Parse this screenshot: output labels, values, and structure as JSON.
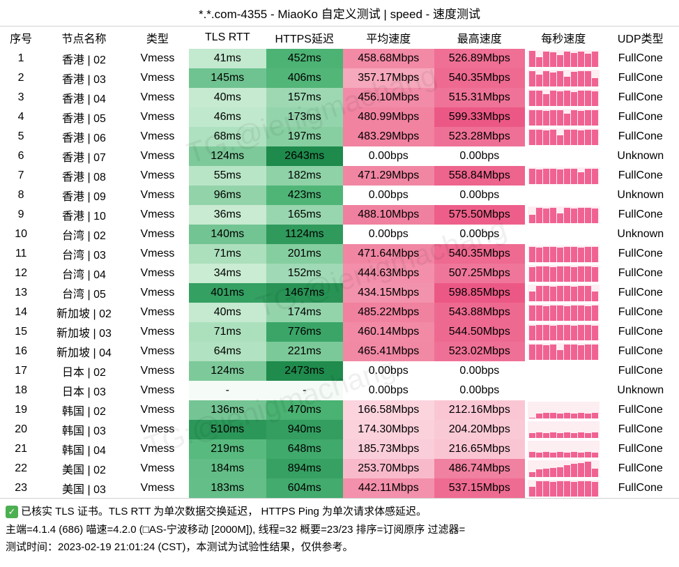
{
  "title": "*.*.com-4355 - MiaoKo 自定义测试 | speed - 速度测试",
  "columns": [
    "序号",
    "节点名称",
    "类型",
    "TLS RTT",
    "HTTPS延迟",
    "平均速度",
    "最高速度",
    "每秒速度",
    "UDP类型"
  ],
  "type_label": "Vmess",
  "green_palette": {
    "_comment": "tls/https cell backgrounds keyed by relative latency",
    "na": "#f5fbf7"
  },
  "pink_palette": {
    "text": "#000000"
  },
  "spark_bar_color": "#f06292",
  "spark_bg_color": "#fdeef2",
  "rows": [
    {
      "seq": 1,
      "node": "香港 | 02",
      "tls": "41ms",
      "tls_bg": "#c3e9cf",
      "https": "452ms",
      "https_bg": "#4cb374",
      "avg": "458.68Mbps",
      "avg_bg": "#f28aa6",
      "max": "526.89Mbps",
      "max_bg": "#ef6f95",
      "spark": [
        0.95,
        0.6,
        0.92,
        0.88,
        0.7,
        0.9,
        0.85,
        0.9,
        0.8,
        0.92
      ],
      "udp": "FullCone"
    },
    {
      "seq": 2,
      "node": "香港 | 03",
      "tls": "145ms",
      "tls_bg": "#6fc390",
      "https": "406ms",
      "https_bg": "#52b679",
      "avg": "357.17Mbps",
      "avg_bg": "#f6a8bc",
      "max": "540.35Mbps",
      "max_bg": "#ee6a91",
      "spark": [
        0.9,
        0.7,
        0.92,
        0.85,
        0.9,
        0.6,
        0.88,
        0.9,
        0.92,
        0.5
      ],
      "udp": "FullCone"
    },
    {
      "seq": 3,
      "node": "香港 | 04",
      "tls": "40ms",
      "tls_bg": "#c5eacf",
      "https": "157ms",
      "https_bg": "#9dd8b3",
      "avg": "456.10Mbps",
      "avg_bg": "#f28ba7",
      "max": "515.31Mbps",
      "max_bg": "#ef7398",
      "spark": [
        0.92,
        0.9,
        0.7,
        0.9,
        0.88,
        0.9,
        0.85,
        0.9,
        0.92,
        0.88
      ],
      "udp": "FullCone"
    },
    {
      "seq": 4,
      "node": "香港 | 05",
      "tls": "46ms",
      "tls_bg": "#c0e8cc",
      "https": "173ms",
      "https_bg": "#94d4ac",
      "avg": "480.99Mbps",
      "avg_bg": "#f183a1",
      "max": "599.33Mbps",
      "max_bg": "#ec5885",
      "spark": [
        0.92,
        0.9,
        0.88,
        0.9,
        0.92,
        0.7,
        0.9,
        0.88,
        0.9,
        0.92
      ],
      "udp": "FullCone"
    },
    {
      "seq": 5,
      "node": "香港 | 06",
      "tls": "68ms",
      "tls_bg": "#aee1bf",
      "https": "197ms",
      "https_bg": "#87cfa1",
      "avg": "483.29Mbps",
      "avg_bg": "#f182a0",
      "max": "523.28Mbps",
      "max_bg": "#ef7096",
      "spark": [
        0.9,
        0.92,
        0.88,
        0.92,
        0.6,
        0.9,
        0.92,
        0.88,
        0.9,
        0.92
      ],
      "udp": "FullCone"
    },
    {
      "seq": 6,
      "node": "香港 | 07",
      "tls": "124ms",
      "tls_bg": "#7dc99a",
      "https": "2643ms",
      "https_bg": "#1e8a4c",
      "avg": "0.00bps",
      "avg_bg": "#ffffff",
      "max": "0.00bps",
      "max_bg": "#ffffff",
      "spark": null,
      "udp": "Unknown"
    },
    {
      "seq": 7,
      "node": "香港 | 08",
      "tls": "55ms",
      "tls_bg": "#b9e5c7",
      "https": "182ms",
      "https_bg": "#8fd2a7",
      "avg": "471.29Mbps",
      "avg_bg": "#f186a3",
      "max": "558.84Mbps",
      "max_bg": "#ed648d",
      "spark": [
        0.9,
        0.88,
        0.92,
        0.9,
        0.88,
        0.92,
        0.9,
        0.7,
        0.9,
        0.92
      ],
      "udp": "FullCone"
    },
    {
      "seq": 8,
      "node": "香港 | 09",
      "tls": "96ms",
      "tls_bg": "#93d3aa",
      "https": "423ms",
      "https_bg": "#4fb577",
      "avg": "0.00bps",
      "avg_bg": "#ffffff",
      "max": "0.00bps",
      "max_bg": "#ffffff",
      "spark": null,
      "udp": "Unknown"
    },
    {
      "seq": 9,
      "node": "香港 | 10",
      "tls": "36ms",
      "tls_bg": "#c8ebd1",
      "https": "165ms",
      "https_bg": "#98d6af",
      "avg": "488.10Mbps",
      "avg_bg": "#f0809f",
      "max": "575.50Mbps",
      "max_bg": "#ed5f8a",
      "spark": [
        0.5,
        0.9,
        0.88,
        0.92,
        0.6,
        0.9,
        0.88,
        0.92,
        0.9,
        0.88
      ],
      "udp": "FullCone"
    },
    {
      "seq": 10,
      "node": "台湾 | 02",
      "tls": "140ms",
      "tls_bg": "#72c492",
      "https": "1124ms",
      "https_bg": "#2f9a5c",
      "avg": "0.00bps",
      "avg_bg": "#ffffff",
      "max": "0.00bps",
      "max_bg": "#ffffff",
      "spark": null,
      "udp": "Unknown"
    },
    {
      "seq": 11,
      "node": "台湾 | 03",
      "tls": "71ms",
      "tls_bg": "#ace0bd",
      "https": "201ms",
      "https_bg": "#85cea0",
      "avg": "471.64Mbps",
      "avg_bg": "#f186a3",
      "max": "540.35Mbps",
      "max_bg": "#ee6a91",
      "spark": [
        0.92,
        0.88,
        0.9,
        0.92,
        0.88,
        0.9,
        0.92,
        0.88,
        0.9,
        0.92
      ],
      "udp": "FullCone"
    },
    {
      "seq": 12,
      "node": "台湾 | 04",
      "tls": "34ms",
      "tls_bg": "#caecd2",
      "https": "152ms",
      "https_bg": "#9fd9b5",
      "avg": "444.63Mbps",
      "avg_bg": "#f38faa",
      "max": "507.25Mbps",
      "max_bg": "#ef769a",
      "spark": [
        0.88,
        0.92,
        0.9,
        0.88,
        0.92,
        0.9,
        0.88,
        0.92,
        0.9,
        0.88
      ],
      "udp": "FullCone"
    },
    {
      "seq": 13,
      "node": "台湾 | 05",
      "tls": "401ms",
      "tls_bg": "#34a062",
      "https": "1467ms",
      "https_bg": "#289355",
      "avg": "434.15Mbps",
      "avg_bg": "#f392ac",
      "max": "598.85Mbps",
      "max_bg": "#ec5885",
      "spark": [
        0.6,
        0.9,
        0.92,
        0.88,
        0.9,
        0.92,
        0.88,
        0.9,
        0.92,
        0.6
      ],
      "udp": "FullCone"
    },
    {
      "seq": 14,
      "node": "新加坡 | 02",
      "tls": "40ms",
      "tls_bg": "#c5eacf",
      "https": "174ms",
      "https_bg": "#93d4ab",
      "avg": "485.22Mbps",
      "avg_bg": "#f0819f",
      "max": "543.88Mbps",
      "max_bg": "#ee6990",
      "spark": [
        0.9,
        0.92,
        0.88,
        0.9,
        0.92,
        0.88,
        0.9,
        0.92,
        0.88,
        0.9
      ],
      "udp": "FullCone"
    },
    {
      "seq": 15,
      "node": "新加坡 | 03",
      "tls": "71ms",
      "tls_bg": "#ace0bd",
      "https": "776ms",
      "https_bg": "#3aa567",
      "avg": "460.14Mbps",
      "avg_bg": "#f28aa6",
      "max": "544.50Mbps",
      "max_bg": "#ee6990",
      "spark": [
        0.88,
        0.9,
        0.92,
        0.88,
        0.9,
        0.92,
        0.88,
        0.9,
        0.92,
        0.88
      ],
      "udp": "FullCone"
    },
    {
      "seq": 16,
      "node": "新加坡 | 04",
      "tls": "64ms",
      "tls_bg": "#b1e2c1",
      "https": "221ms",
      "https_bg": "#7bc998",
      "avg": "465.41Mbps",
      "avg_bg": "#f188a4",
      "max": "523.02Mbps",
      "max_bg": "#ef7096",
      "spark": [
        0.9,
        0.92,
        0.88,
        0.9,
        0.6,
        0.9,
        0.92,
        0.88,
        0.9,
        0.92
      ],
      "udp": "FullCone"
    },
    {
      "seq": 17,
      "node": "日本 | 02",
      "tls": "124ms",
      "tls_bg": "#7dc99a",
      "https": "2473ms",
      "https_bg": "#1f8b4d",
      "avg": "0.00bps",
      "avg_bg": "#ffffff",
      "max": "0.00bps",
      "max_bg": "#ffffff",
      "spark": null,
      "udp": "FullCone"
    },
    {
      "seq": 18,
      "node": "日本 | 03",
      "tls": "-",
      "tls_bg": "#f5fbf7",
      "https": "-",
      "https_bg": "#f5fbf7",
      "avg": "0.00bps",
      "avg_bg": "#ffffff",
      "max": "0.00bps",
      "max_bg": "#ffffff",
      "spark": null,
      "udp": "Unknown"
    },
    {
      "seq": 19,
      "node": "韩国 | 02",
      "tls": "136ms",
      "tls_bg": "#75c594",
      "https": "470ms",
      "https_bg": "#4ab272",
      "avg": "166.58Mbps",
      "avg_bg": "#fbd4de",
      "max": "212.16Mbps",
      "max_bg": "#fac6d4",
      "spark": [
        0.05,
        0.3,
        0.35,
        0.32,
        0.3,
        0.35,
        0.3,
        0.35,
        0.3,
        0.35
      ],
      "udp": "FullCone"
    },
    {
      "seq": 20,
      "node": "韩国 | 03",
      "tls": "510ms",
      "tls_bg": "#2b9759",
      "https": "940ms",
      "https_bg": "#339e60",
      "avg": "174.30Mbps",
      "avg_bg": "#fbd1dc",
      "max": "204.20Mbps",
      "max_bg": "#fac9d6",
      "spark": [
        0.3,
        0.35,
        0.3,
        0.35,
        0.3,
        0.35,
        0.3,
        0.35,
        0.3,
        0.35
      ],
      "udp": "FullCone"
    },
    {
      "seq": 21,
      "node": "韩国 | 04",
      "tls": "219ms",
      "tls_bg": "#58ba7e",
      "https": "648ms",
      "https_bg": "#40a96c",
      "avg": "185.73Mbps",
      "avg_bg": "#facdda",
      "max": "216.65Mbps",
      "max_bg": "#fac5d3",
      "spark": [
        0.35,
        0.3,
        0.35,
        0.3,
        0.35,
        0.3,
        0.35,
        0.3,
        0.35,
        0.3
      ],
      "udp": "FullCone"
    },
    {
      "seq": 22,
      "node": "美国 | 02",
      "tls": "184ms",
      "tls_bg": "#62be86",
      "https": "894ms",
      "https_bg": "#37a163",
      "avg": "253.70Mbps",
      "avg_bg": "#f8bacb",
      "max": "486.74Mbps",
      "max_bg": "#f081a0",
      "spark": [
        0.3,
        0.45,
        0.5,
        0.55,
        0.6,
        0.7,
        0.8,
        0.85,
        0.9,
        0.5
      ],
      "udp": "FullCone"
    },
    {
      "seq": 23,
      "node": "美国 | 03",
      "tls": "183ms",
      "tls_bg": "#63be87",
      "https": "604ms",
      "https_bg": "#43ab6e",
      "avg": "442.11Mbps",
      "avg_bg": "#f390ab",
      "max": "537.15Mbps",
      "max_bg": "#ee6b92",
      "spark": [
        0.6,
        0.9,
        0.92,
        0.88,
        0.9,
        0.92,
        0.88,
        0.9,
        0.92,
        0.88
      ],
      "udp": "FullCone"
    }
  ],
  "footer": {
    "line1": "已核实 TLS 证书。TLS RTT 为单次数据交换延迟， HTTPS Ping 为单次请求体感延迟。",
    "line2": "主端=4.1.4 (686) 喵速=4.2.0 (□AS-宁波移动 [2000M]), 线程=32 概要=23/23 排序=订阅原序 过滤器=",
    "line3": "测试时间：2023-02-19 21:01:24 (CST)，本测试为试验性结果，仅供参考。"
  },
  "watermark": "TG:@ienigmachang"
}
